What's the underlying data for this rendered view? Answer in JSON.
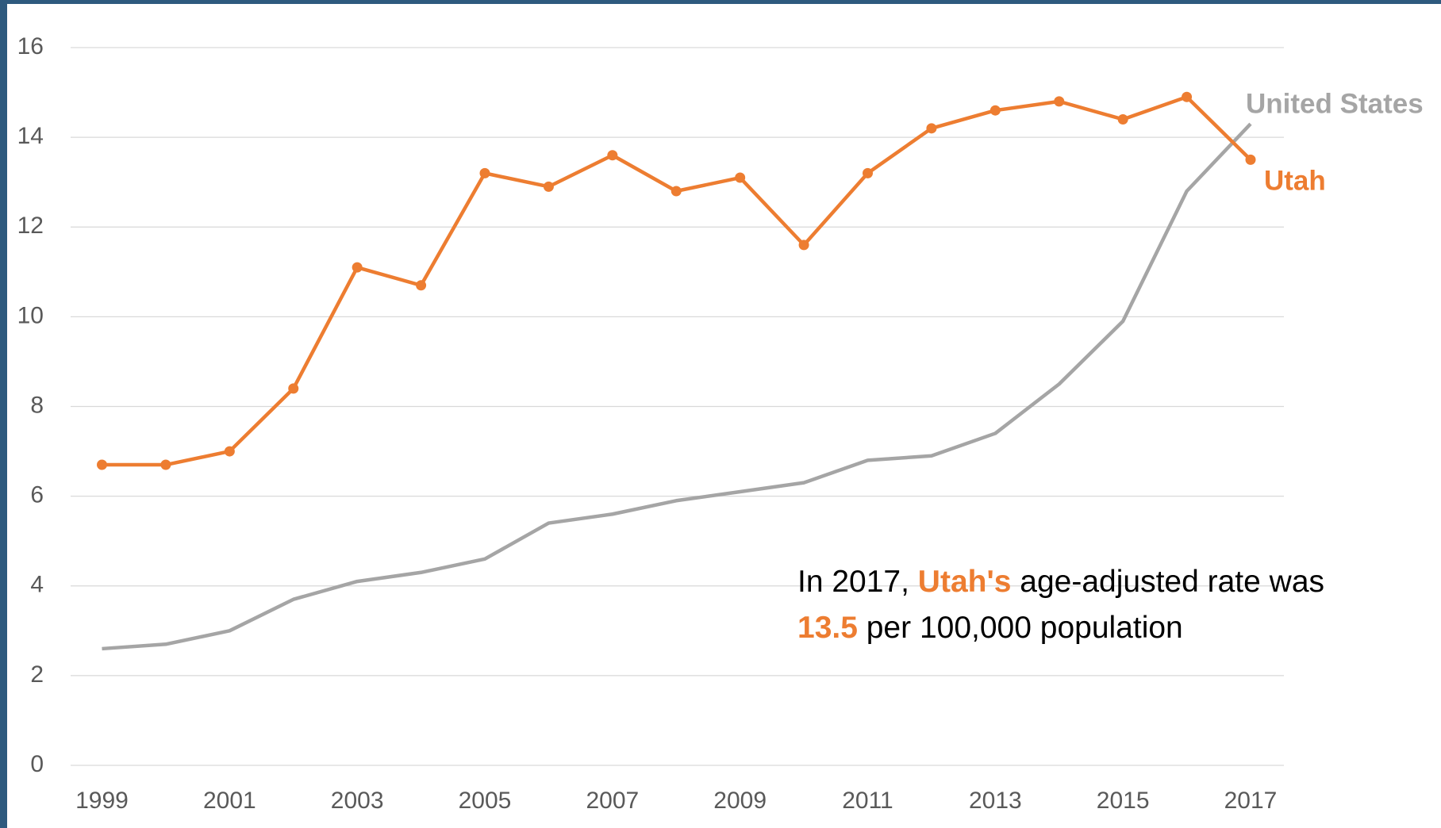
{
  "chart_data": {
    "type": "line",
    "x": [
      1999,
      2000,
      2001,
      2002,
      2003,
      2004,
      2005,
      2006,
      2007,
      2008,
      2009,
      2010,
      2011,
      2012,
      2013,
      2014,
      2015,
      2016,
      2017
    ],
    "series": [
      {
        "name": "United States",
        "color": "#a5a5a5",
        "markers": false,
        "values": [
          2.6,
          2.7,
          3.0,
          3.7,
          4.1,
          4.3,
          4.6,
          5.4,
          5.6,
          5.9,
          6.1,
          6.3,
          6.8,
          6.9,
          7.4,
          8.5,
          9.9,
          12.8,
          14.3
        ]
      },
      {
        "name": "Utah",
        "color": "#ed7d31",
        "markers": true,
        "values": [
          6.7,
          6.7,
          7.0,
          8.4,
          11.1,
          10.7,
          13.2,
          12.9,
          13.6,
          12.8,
          13.1,
          11.6,
          13.2,
          14.2,
          14.6,
          14.8,
          14.4,
          14.9,
          13.5
        ]
      }
    ],
    "xlim": [
      1999,
      2017
    ],
    "xticks": [
      1999,
      2001,
      2003,
      2005,
      2007,
      2009,
      2011,
      2013,
      2015,
      2017
    ],
    "ylim": [
      0,
      16
    ],
    "yticks": [
      0,
      2,
      4,
      6,
      8,
      10,
      12,
      14,
      16
    ],
    "grid": true,
    "annotation": {
      "lines": [
        [
          {
            "text": "In 2017, "
          },
          {
            "text": "Utah's",
            "color": "#ed7d31"
          },
          {
            "text": " age-adjusted rate was"
          }
        ],
        [
          {
            "text": "13.5",
            "color": "#ed7d31"
          },
          {
            "text": " per 100,000 population"
          }
        ]
      ]
    }
  }
}
